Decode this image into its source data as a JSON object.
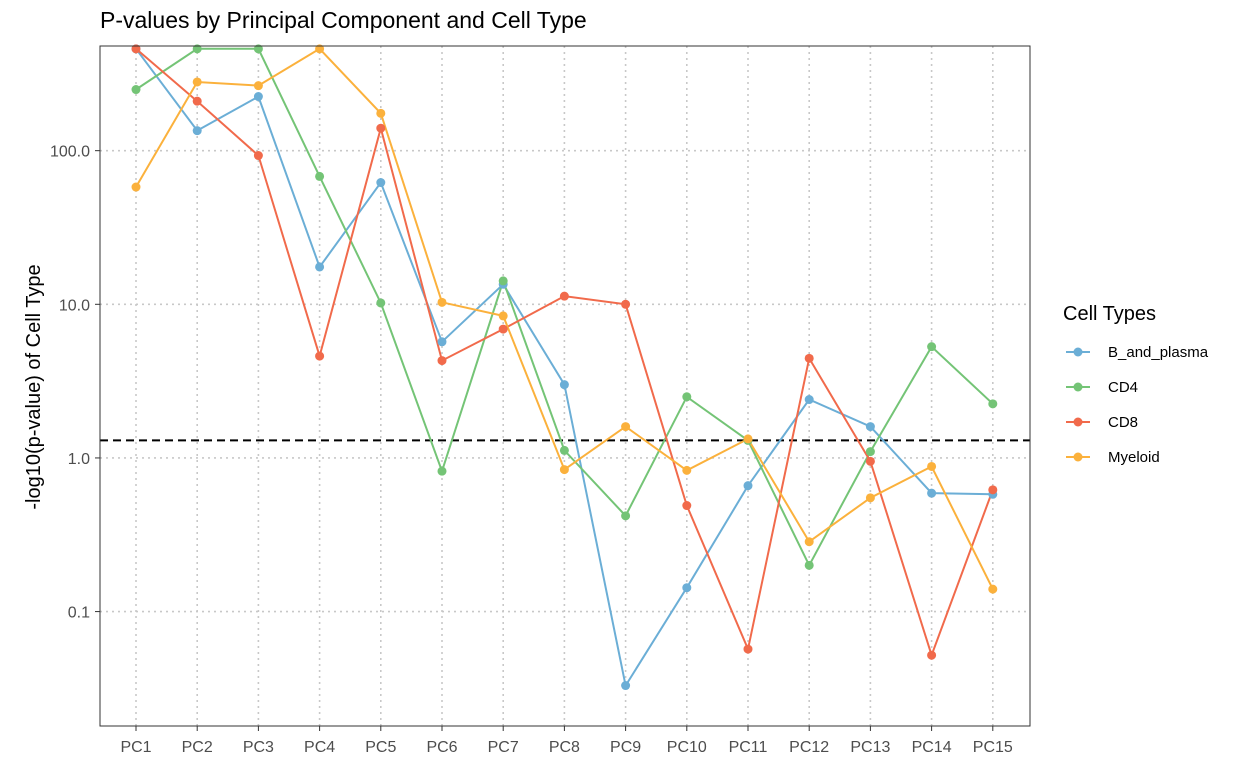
{
  "chart_data": {
    "type": "line",
    "title": "P-values by Principal Component and Cell Type",
    "xlabel": "",
    "ylabel": "-log10(p-value) of Cell Type",
    "y_scale": "log10",
    "ylim": [
      0.018,
      480
    ],
    "y_ticks": [
      0.1,
      1.0,
      10.0,
      100.0
    ],
    "y_tick_labels": [
      "0.1",
      "1.0",
      "10.0",
      "100.0"
    ],
    "categories": [
      "PC1",
      "PC2",
      "PC3",
      "PC4",
      "PC5",
      "PC6",
      "PC7",
      "PC8",
      "PC9",
      "PC10",
      "PC11",
      "PC12",
      "PC13",
      "PC14",
      "PC15"
    ],
    "threshold_line": 1.3,
    "grid": true,
    "legend": {
      "title": "Cell Types",
      "position": "right"
    },
    "series": [
      {
        "name": "B_and_plasma",
        "color": "#6BAED6",
        "values": [
          460,
          135,
          225,
          17.5,
          62,
          5.7,
          13.5,
          3.0,
          0.033,
          0.143,
          0.66,
          2.4,
          1.6,
          0.59,
          0.58
        ]
      },
      {
        "name": "CD4",
        "color": "#74C476",
        "values": [
          250,
          460,
          460,
          68,
          10.2,
          0.82,
          14.2,
          1.12,
          0.42,
          2.5,
          1.3,
          0.2,
          1.1,
          5.3,
          2.25
        ]
      },
      {
        "name": "CD8",
        "color": "#F16A4B",
        "values": [
          460,
          210,
          93,
          4.6,
          140,
          4.3,
          6.9,
          11.3,
          10.0,
          0.49,
          0.057,
          4.45,
          0.95,
          0.052,
          0.62
        ]
      },
      {
        "name": "Myeloid",
        "color": "#FBB13C",
        "values": [
          58,
          280,
          265,
          460,
          175,
          10.3,
          8.4,
          0.84,
          1.6,
          0.83,
          1.33,
          0.285,
          0.55,
          0.88,
          0.14
        ]
      }
    ]
  }
}
